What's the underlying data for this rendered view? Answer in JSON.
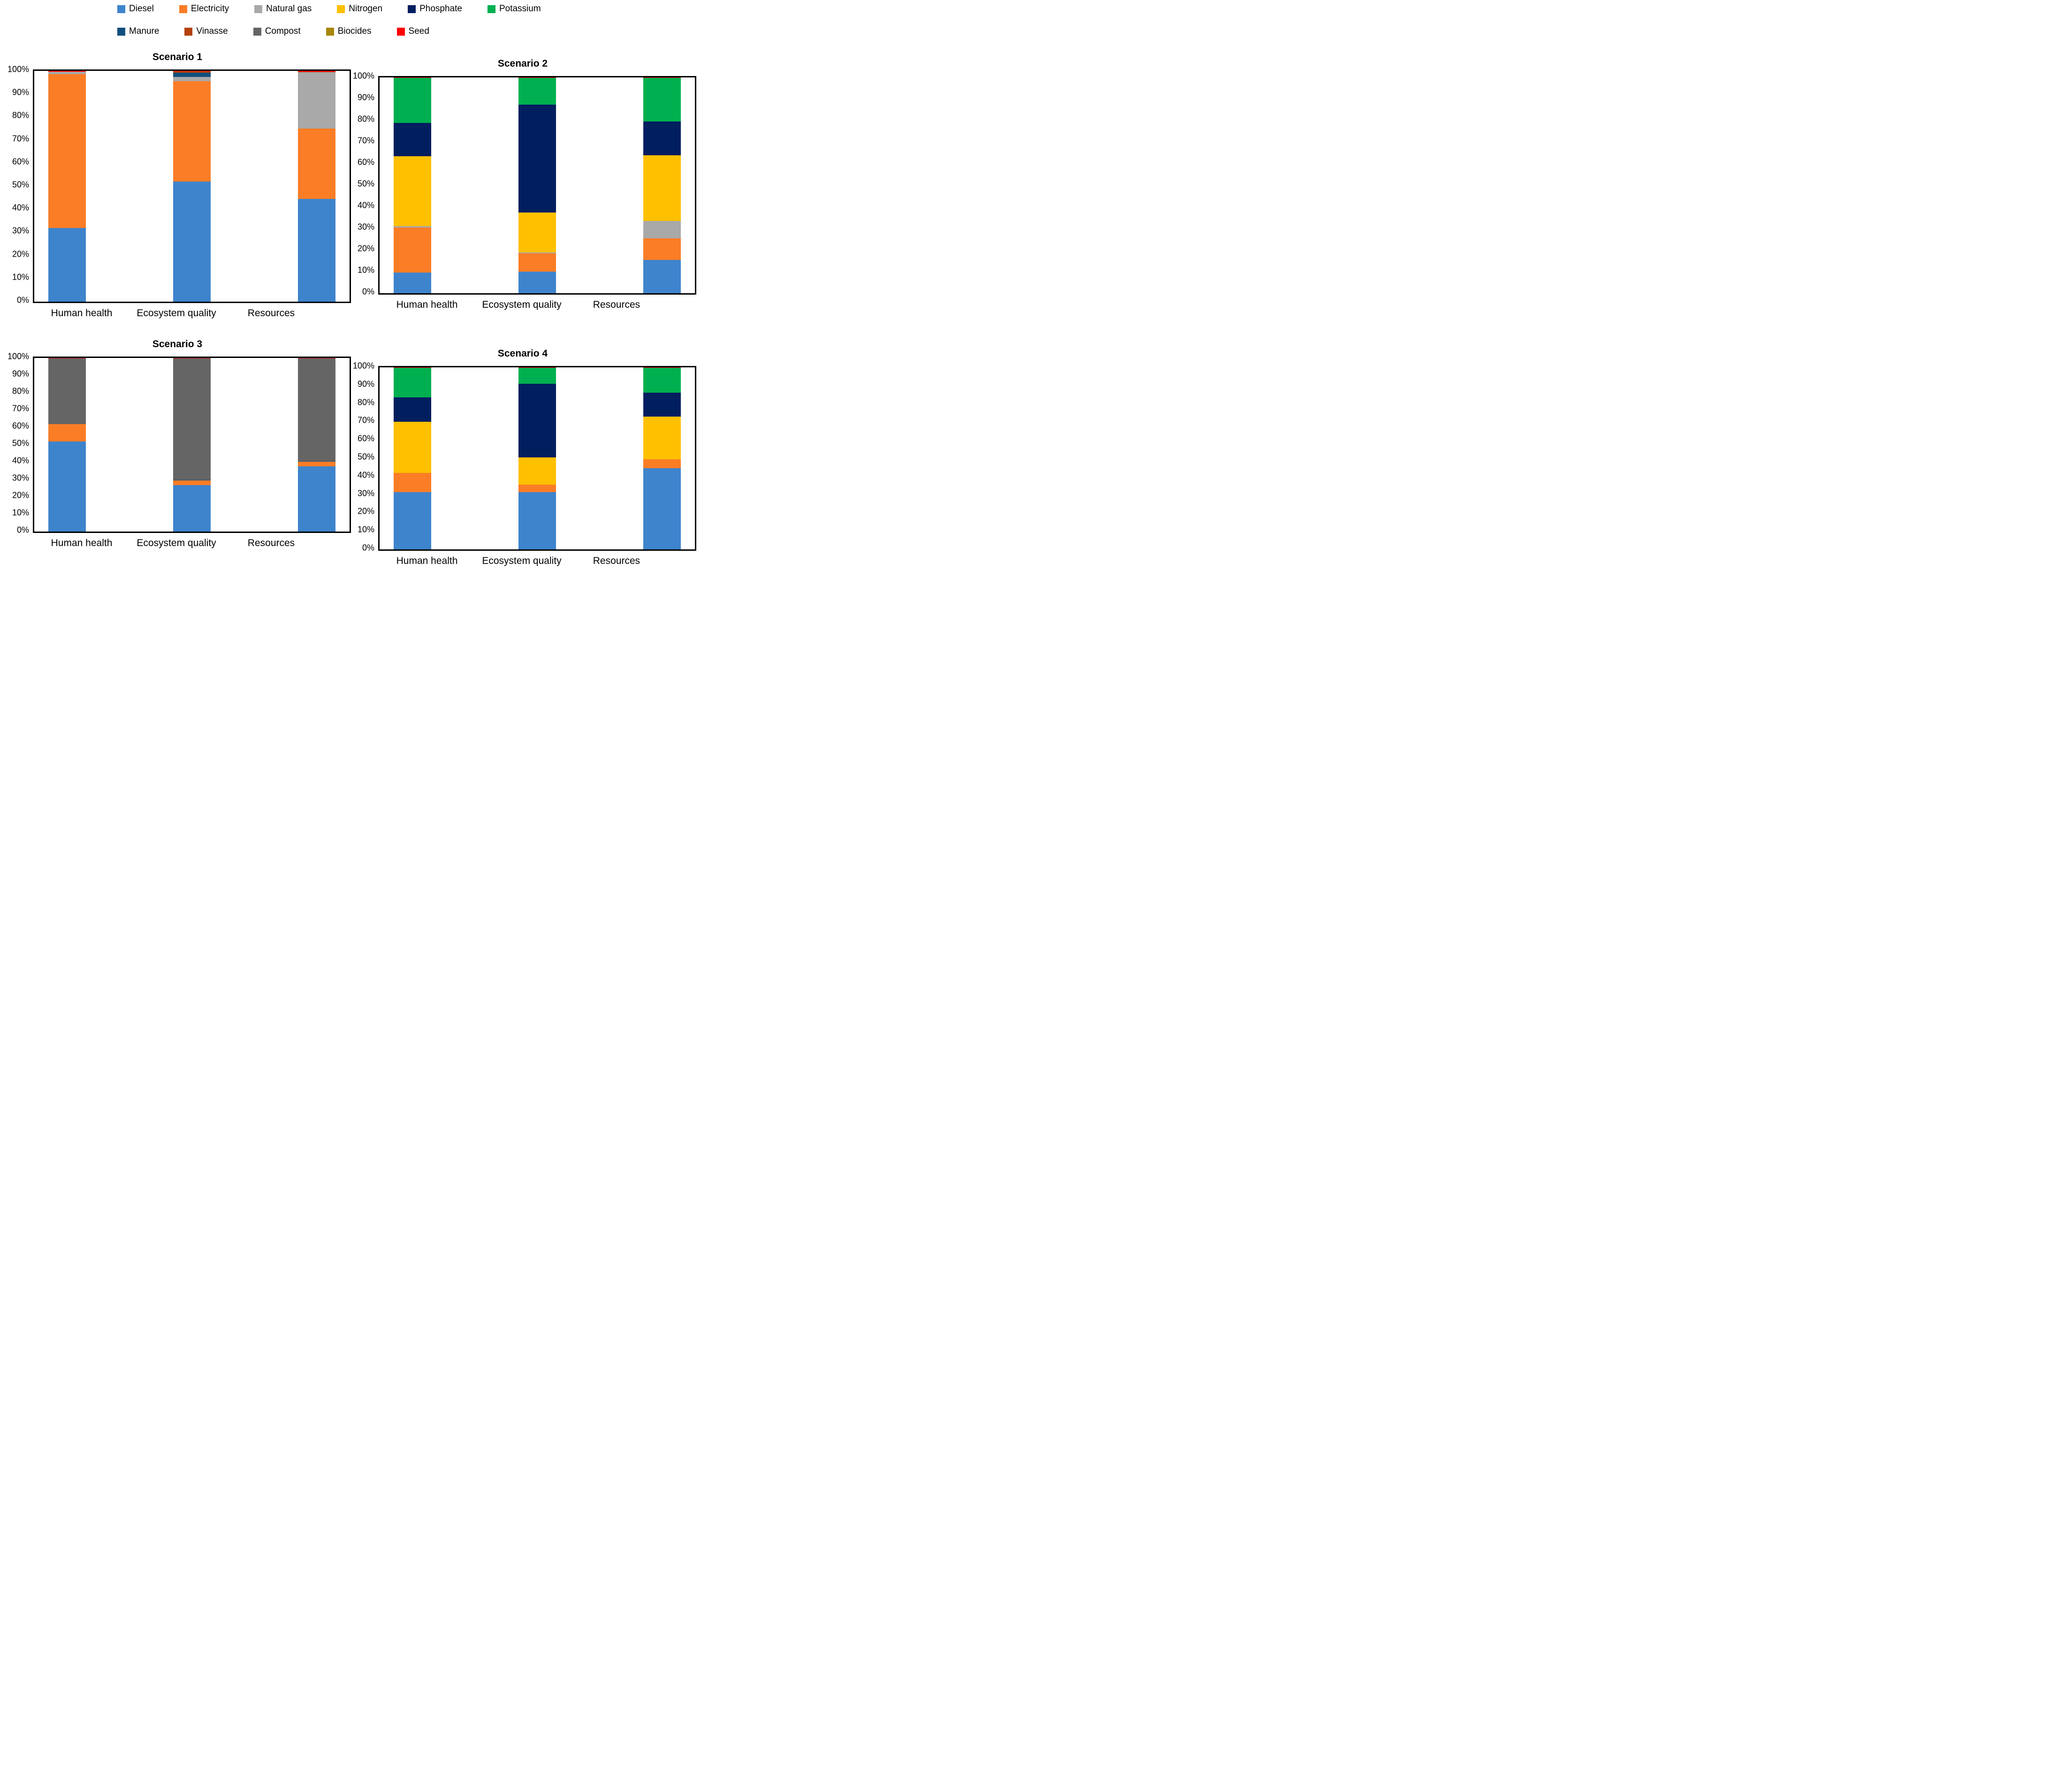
{
  "colors": {
    "Diesel": "#3E84CC",
    "Electricity": "#FB7D26",
    "Natural gas": "#A9A9A9",
    "Nitrogen": "#FFC000",
    "Phosphate": "#011E5F",
    "Potassium": "#00B050",
    "Manure": "#11507D",
    "Vinasse": "#B5420E",
    "Compost": "#656565",
    "Biocides": "#A8860B",
    "Seed": "#FE0000"
  },
  "legend": {
    "rows": [
      [
        "Diesel",
        "Electricity",
        "Natural gas",
        "Nitrogen",
        "Phosphate",
        "Potassium"
      ],
      [
        "Manure",
        "Vinasse",
        "Compost",
        "Biocides",
        "Seed"
      ]
    ]
  },
  "chart_data": [
    {
      "type": "bar",
      "stacked": true,
      "title": "Scenario 1",
      "categories": [
        "Human health",
        "Ecosystem quality",
        "Resources"
      ],
      "series": [
        {
          "name": "Diesel",
          "values": [
            32.0,
            52.0,
            44.5
          ]
        },
        {
          "name": "Electricity",
          "values": [
            66.6,
            43.6,
            30.5
          ]
        },
        {
          "name": "Natural gas",
          "values": [
            0.9,
            1.8,
            24.3
          ]
        },
        {
          "name": "Manure",
          "values": [
            0.2,
            1.8,
            0
          ]
        },
        {
          "name": "Vinasse",
          "values": [
            0,
            0.6,
            0.3
          ]
        },
        {
          "name": "Seed",
          "values": [
            0.3,
            0.2,
            0.4
          ]
        }
      ],
      "ylabel": "",
      "xlabel": "",
      "ylim": [
        0,
        100
      ],
      "y_ticks": [
        "0%",
        "10%",
        "20%",
        "30%",
        "40%",
        "50%",
        "60%",
        "70%",
        "80%",
        "90%",
        "100%"
      ],
      "grid": false,
      "legend_position": "top"
    },
    {
      "type": "bar",
      "stacked": true,
      "title": "Scenario 2",
      "categories": [
        "Human health",
        "Ecosystem quality",
        "Resources"
      ],
      "series": [
        {
          "name": "Diesel",
          "values": [
            9.5,
            10.0,
            15.5
          ]
        },
        {
          "name": "Electricity",
          "values": [
            21.0,
            8.5,
            10.0
          ]
        },
        {
          "name": "Natural gas",
          "values": [
            0.5,
            0.5,
            8.0
          ]
        },
        {
          "name": "Nitrogen",
          "values": [
            32.5,
            18.5,
            30.5
          ]
        },
        {
          "name": "Phosphate",
          "values": [
            15.5,
            50.0,
            15.5
          ]
        },
        {
          "name": "Potassium",
          "values": [
            20.7,
            12.2,
            20.2
          ]
        },
        {
          "name": "Seed",
          "values": [
            0.3,
            0.3,
            0.3
          ]
        }
      ],
      "ylabel": "",
      "xlabel": "",
      "ylim": [
        0,
        100
      ],
      "y_ticks": [
        "0%",
        "10%",
        "20%",
        "30%",
        "40%",
        "50%",
        "60%",
        "70%",
        "80%",
        "90%",
        "100%"
      ],
      "grid": false,
      "legend_position": "top"
    },
    {
      "type": "bar",
      "stacked": true,
      "title": "Scenario 3",
      "categories": [
        "Human health",
        "Ecosystem quality",
        "Resources"
      ],
      "series": [
        {
          "name": "Diesel",
          "values": [
            51.8,
            26.8,
            37.5
          ]
        },
        {
          "name": "Electricity",
          "values": [
            10.2,
            2.6,
            2.7
          ]
        },
        {
          "name": "Manure",
          "values": [
            0,
            0.3,
            0.3
          ]
        },
        {
          "name": "Compost",
          "values": [
            37.8,
            70.1,
            59.3
          ]
        },
        {
          "name": "Seed",
          "values": [
            0.2,
            0.2,
            0.2
          ]
        }
      ],
      "ylabel": "",
      "xlabel": "",
      "ylim": [
        0,
        100
      ],
      "y_ticks": [
        "0%",
        "10%",
        "20%",
        "30%",
        "40%",
        "50%",
        "60%",
        "70%",
        "80%",
        "90%",
        "100%"
      ],
      "grid": false,
      "legend_position": "top"
    },
    {
      "type": "bar",
      "stacked": true,
      "title": "Scenario 4",
      "categories": [
        "Human health",
        "Ecosystem quality",
        "Resources"
      ],
      "series": [
        {
          "name": "Diesel",
          "values": [
            31.5,
            31.5,
            44.5
          ]
        },
        {
          "name": "Electricity",
          "values": [
            10.5,
            4.0,
            5.0
          ]
        },
        {
          "name": "Nitrogen",
          "values": [
            28.0,
            15.0,
            23.5
          ]
        },
        {
          "name": "Phosphate",
          "values": [
            13.5,
            40.5,
            13.0
          ]
        },
        {
          "name": "Potassium",
          "values": [
            16.3,
            8.8,
            13.8
          ]
        },
        {
          "name": "Seed",
          "values": [
            0.2,
            0.2,
            0.2
          ]
        }
      ],
      "ylabel": "",
      "xlabel": "",
      "ylim": [
        0,
        100
      ],
      "y_ticks": [
        "0%",
        "10%",
        "20%",
        "30%",
        "40%",
        "50%",
        "60%",
        "70%",
        "80%",
        "90%",
        "100%"
      ],
      "grid": false,
      "legend_position": "top"
    }
  ]
}
